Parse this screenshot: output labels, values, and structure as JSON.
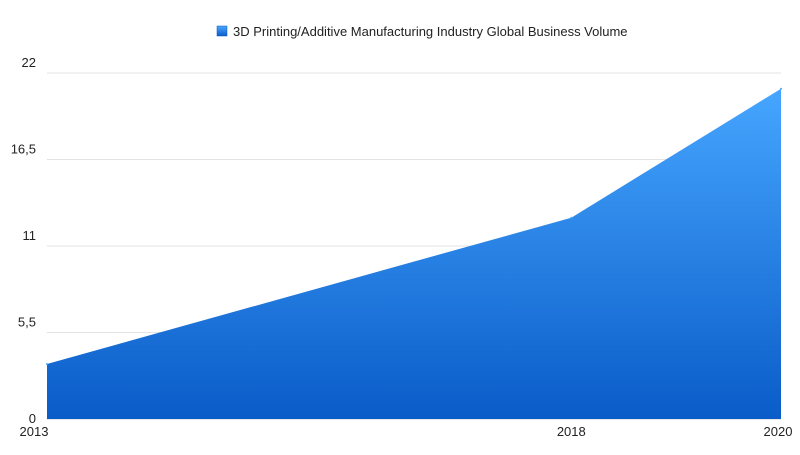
{
  "chart_data": {
    "type": "area",
    "x": [
      "2013",
      "2018",
      "2020"
    ],
    "series": [
      {
        "name": "3D Printing/Additive Manufacturing Industry Global Business Volume",
        "values": [
          3.5,
          12.8,
          21.0
        ]
      }
    ],
    "ylim": [
      0,
      22
    ],
    "yticks": [
      "0",
      "5,5",
      "11",
      "16,5",
      "22"
    ],
    "ytick_values": [
      0,
      5.5,
      11,
      16.5,
      22
    ],
    "grid": true,
    "legend": "top-center",
    "colors": {
      "area_top": "#46a6ff",
      "area_bottom": "#0a5cc8",
      "legend_swatch": "#1f7fe0"
    }
  }
}
